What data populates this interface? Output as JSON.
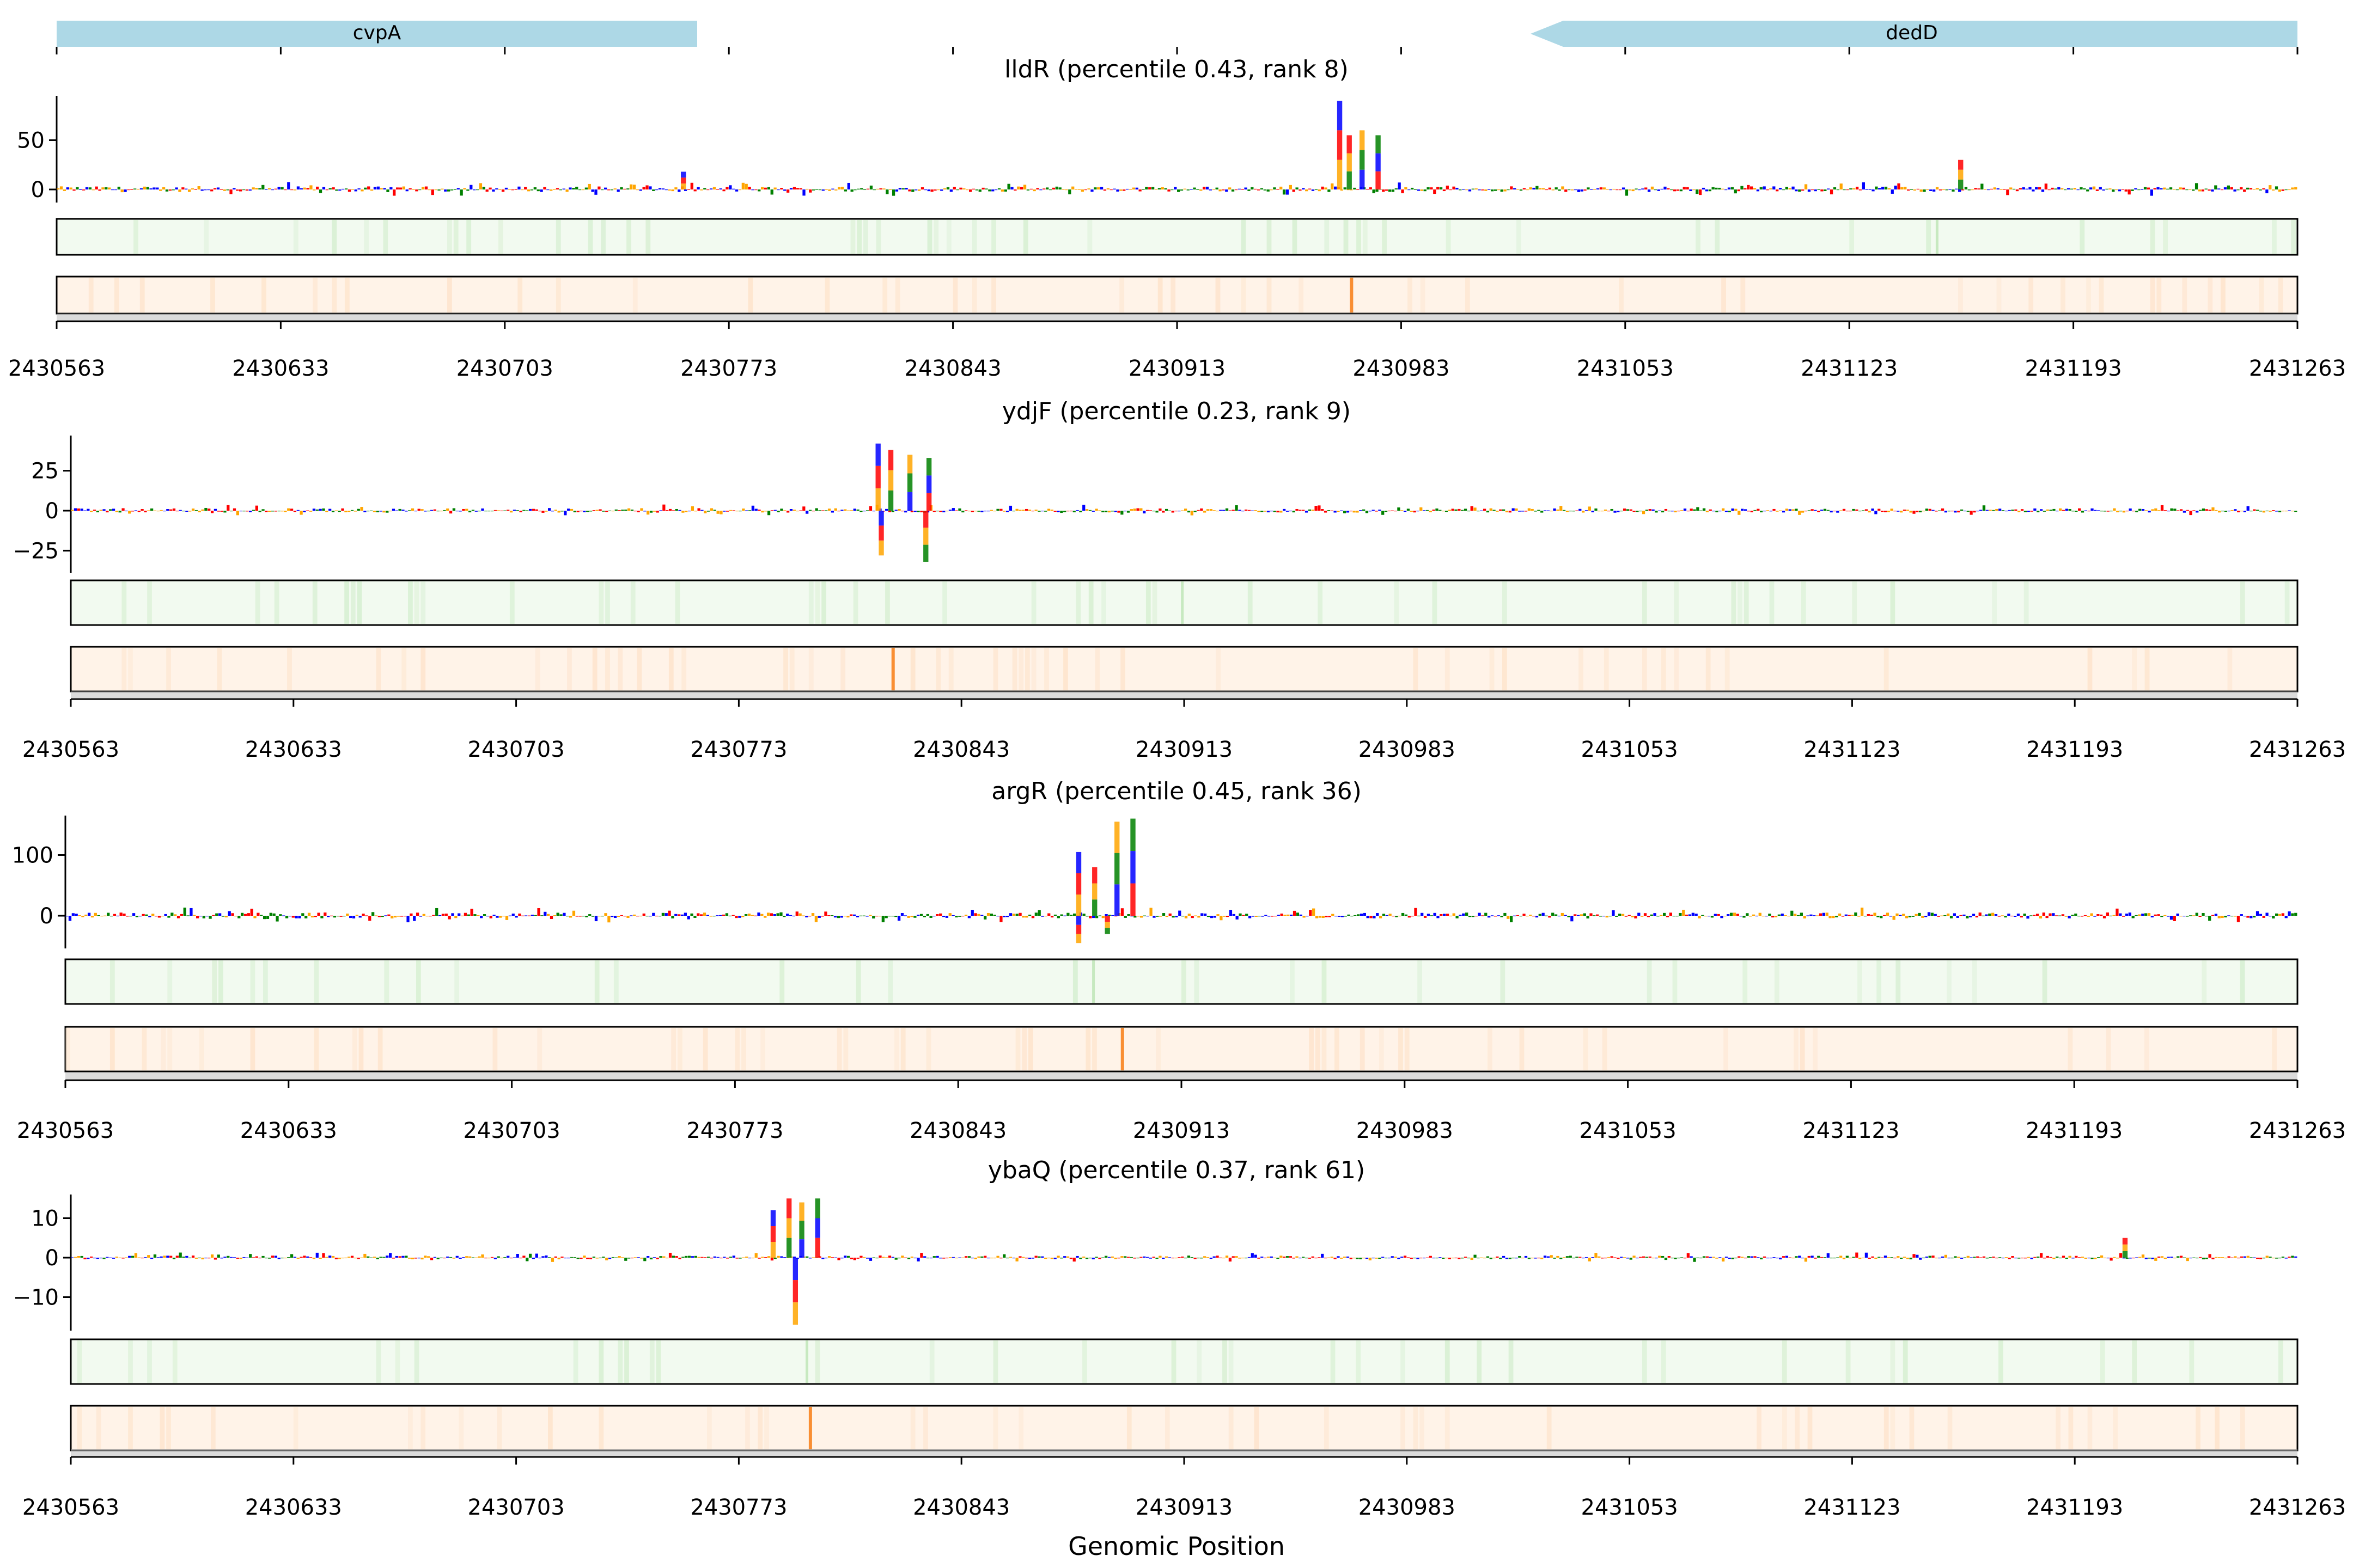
{
  "genes": [
    {
      "name": "cvpA",
      "start": 2430563,
      "end": 2430774,
      "strand": "+",
      "color": "#add8e6"
    },
    {
      "name": "dedD",
      "start": 2431004,
      "end": 2431263,
      "strand": "-",
      "color": "#add8e6"
    }
  ],
  "colors": {
    "A": "#008000",
    "C": "#0000ff",
    "G": "#ffa500",
    "T": "#ff0000",
    "track1_bg": "#f2faf0",
    "track1_peak": "#c7e9c0",
    "track2_bg": "#fff3e8",
    "track2_peak": "#f98e33"
  },
  "chart_data": [
    {
      "type": "sequence-logo",
      "title": "lldR (percentile 0.43, rank 8)",
      "x_ticks": [
        "2430563",
        "2430633",
        "2430703",
        "2430773",
        "2430843",
        "2430913",
        "2430983",
        "2431053",
        "2431123",
        "2431193",
        "2431263"
      ],
      "xlim": [
        2430563,
        2431263
      ],
      "ylim": [
        -25,
        95
      ],
      "y_ticks": [
        0,
        50
      ],
      "peaks": [
        {
          "x": 2430963,
          "value": 90
        },
        {
          "x": 2430966,
          "value": 55
        },
        {
          "x": 2430970,
          "value": 60
        },
        {
          "x": 2430975,
          "value": 55
        },
        {
          "x": 2430758,
          "value": 18
        },
        {
          "x": 2431157,
          "value": 30
        }
      ],
      "green_band_x": 2431150,
      "orange_band_x": 2430967
    },
    {
      "type": "sequence-logo",
      "title": "ydjF (percentile 0.23, rank 9)",
      "x_ticks": [
        "2430563",
        "2430633",
        "2430703",
        "2430773",
        "2430843",
        "2430913",
        "2430983",
        "2431053",
        "2431123",
        "2431193",
        "2431263"
      ],
      "xlim": [
        2430563,
        2431263
      ],
      "ylim": [
        -38,
        47
      ],
      "y_ticks": [
        25,
        0,
        -25
      ],
      "peaks": [
        {
          "x": 2430816,
          "value": 42
        },
        {
          "x": 2430820,
          "value": 38
        },
        {
          "x": 2430826,
          "value": 35
        },
        {
          "x": 2430832,
          "value": 33
        },
        {
          "x": 2430817,
          "value": -28
        },
        {
          "x": 2430831,
          "value": -32
        }
      ],
      "green_band_x": 2430912,
      "orange_band_x": 2430821
    },
    {
      "type": "sequence-logo",
      "title": "argR (percentile 0.45, rank 36)",
      "x_ticks": [
        "2430563",
        "2430633",
        "2430703",
        "2430773",
        "2430843",
        "2430913",
        "2430983",
        "2431053",
        "2431123",
        "2431193",
        "2431263"
      ],
      "xlim": [
        2430563,
        2431263
      ],
      "ylim": [
        -60,
        165
      ],
      "y_ticks": [
        100,
        0
      ],
      "peaks": [
        {
          "x": 2430880,
          "value": 105
        },
        {
          "x": 2430885,
          "value": 80
        },
        {
          "x": 2430892,
          "value": 155
        },
        {
          "x": 2430897,
          "value": 160
        },
        {
          "x": 2430880,
          "value": -45
        },
        {
          "x": 2430889,
          "value": -30
        }
      ],
      "green_band_x": 2430885,
      "orange_band_x": 2430894
    },
    {
      "type": "sequence-logo",
      "title": "ybaQ (percentile 0.37, rank 61)",
      "x_ticks": [
        "2430563",
        "2430633",
        "2430703",
        "2430773",
        "2430843",
        "2430913",
        "2430983",
        "2431053",
        "2431123",
        "2431193",
        "2431263"
      ],
      "xlim": [
        2430563,
        2431263
      ],
      "ylim": [
        -18,
        16
      ],
      "y_ticks": [
        10,
        0,
        -10
      ],
      "peaks": [
        {
          "x": 2430783,
          "value": 12
        },
        {
          "x": 2430788,
          "value": 15
        },
        {
          "x": 2430792,
          "value": 14
        },
        {
          "x": 2430797,
          "value": 15
        },
        {
          "x": 2430790,
          "value": -17
        },
        {
          "x": 2431208,
          "value": 5
        }
      ],
      "green_band_x": 2430794,
      "orange_band_x": 2430795
    }
  ],
  "xlabel": "Genomic Position"
}
